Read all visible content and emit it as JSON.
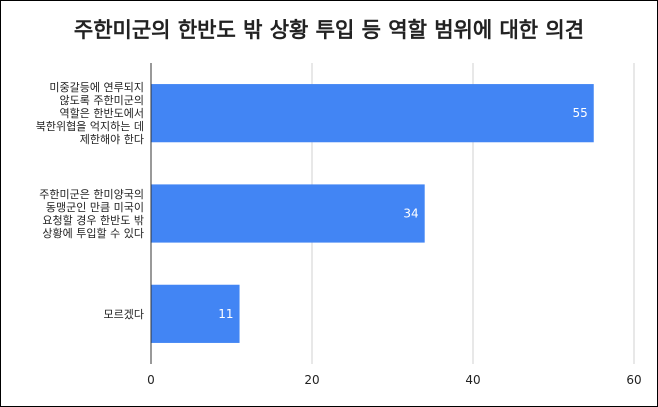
{
  "chart_data": {
    "type": "bar",
    "orientation": "horizontal",
    "title": "주한미군의 한반도 밖 상황 투입 등 역할 범위에 대한 의견",
    "categories": [
      [
        "미중갈등에 연루되지",
        "않도록 주한미군의",
        "역할은 한반도에서",
        "북한위협을 억지하는 데",
        "제한해야 한다"
      ],
      [
        "주한미군은 한미양국의",
        "동맹군인 만큼 미국이",
        "요청할 경우 한반도 밖",
        "상황에 투입할 수 있다"
      ],
      [
        "모르겠다"
      ]
    ],
    "values": [
      55,
      34,
      11
    ],
    "data_labels": [
      "55",
      "34",
      "11"
    ],
    "xlim": [
      0,
      60
    ],
    "xticks": [
      0,
      20,
      40,
      60
    ],
    "xtick_labels": [
      "0",
      "20",
      "40",
      "60"
    ],
    "grid": true,
    "bar_color": "#4285f4"
  }
}
